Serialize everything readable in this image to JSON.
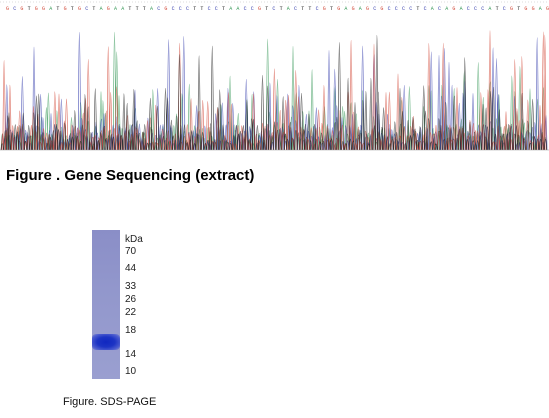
{
  "figure_sequencing": {
    "caption": "Figure . Gene Sequencing (extract)"
  },
  "figure_gel": {
    "unit_label": "kDa",
    "markers": [
      "70",
      "44",
      "33",
      "26",
      "22",
      "18",
      "14",
      "10"
    ],
    "caption": "Figure. SDS-PAGE"
  }
}
